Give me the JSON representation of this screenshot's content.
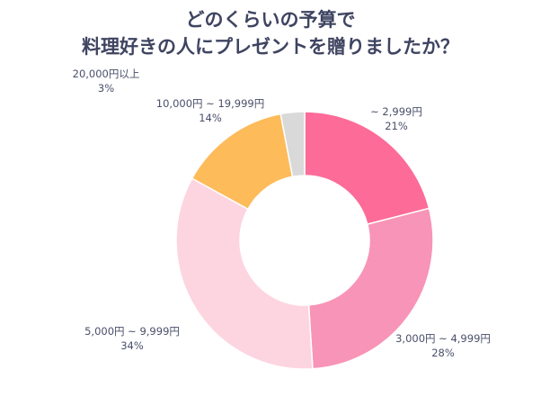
{
  "title_line1": "どのくらいの予算で",
  "title_line2": "料理好きの人にプレゼントを贈りましたか？",
  "chart_data": {
    "type": "pie",
    "donut": true,
    "categories": [
      "~ 2,999円",
      "3,000円 ~ 4,999円",
      "5,000円 ~ 9,999円",
      "10,000円 ~ 19,999円",
      "20,000円以上"
    ],
    "values": [
      21,
      28,
      34,
      14,
      3
    ],
    "value_labels": [
      "21%",
      "28%",
      "34%",
      "14%",
      "3%"
    ],
    "colors": [
      "#fd6b98",
      "#f894b7",
      "#fdd5e1",
      "#fdbb5a",
      "#d9d9d9"
    ]
  }
}
